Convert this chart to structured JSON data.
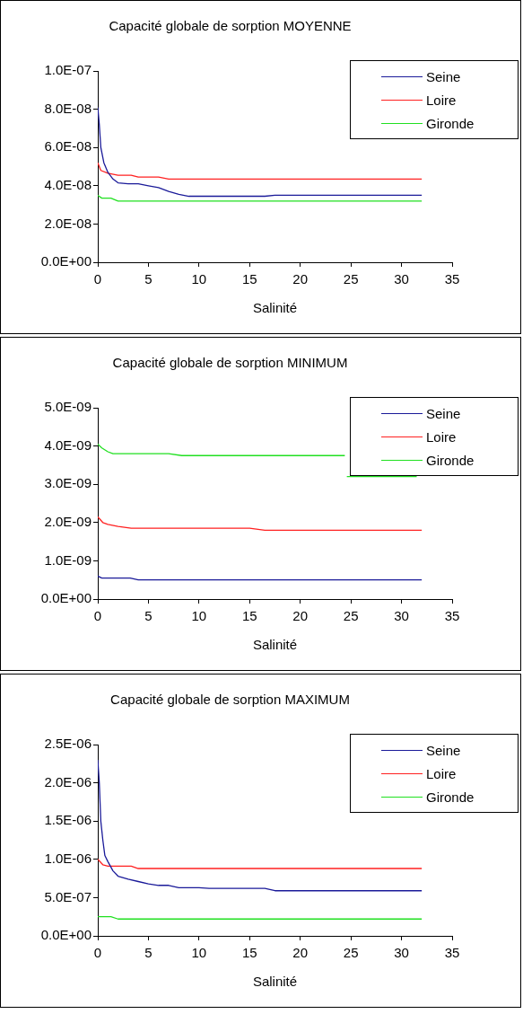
{
  "chart_data": [
    {
      "type": "line",
      "title": "Capacité globale de sorption MOYENNE",
      "xlabel": "Salinité",
      "legend": "top right",
      "grid": false,
      "marker": "none",
      "line_style": "solid",
      "xlim": [
        0,
        35
      ],
      "xticks": [
        0,
        5,
        10,
        15,
        20,
        25,
        30,
        35
      ],
      "ylim": [
        0,
        1e-07
      ],
      "yticks": [
        {
          "value": 0,
          "label": "0.0E+00"
        },
        {
          "value": 2e-08,
          "label": "2.0E-08"
        },
        {
          "value": 4e-08,
          "label": "4.0E-08"
        },
        {
          "value": 6e-08,
          "label": "6.0E-08"
        },
        {
          "value": 8e-08,
          "label": "8.0E-08"
        },
        {
          "value": 1e-07,
          "label": "1.0E-07"
        }
      ],
      "series": [
        {
          "name": "Seine",
          "color": "#1a1a99",
          "x": [
            0,
            0.15,
            0.3,
            0.6,
            1,
            1.5,
            2,
            3,
            4,
            5,
            6,
            7,
            8,
            9,
            16.5,
            17.5,
            32
          ],
          "values": [
            8.1e-08,
            7.2e-08,
            6e-08,
            5.2e-08,
            4.7e-08,
            4.35e-08,
            4.15e-08,
            4.1e-08,
            4.1e-08,
            4e-08,
            3.9e-08,
            3.7e-08,
            3.55e-08,
            3.45e-08,
            3.45e-08,
            3.5e-08,
            3.5e-08
          ]
        },
        {
          "name": "Loire",
          "color": "#ff2020",
          "x": [
            0,
            0.3,
            1,
            2,
            3.3,
            4,
            6,
            7,
            32
          ],
          "values": [
            5.2e-08,
            4.8e-08,
            4.65e-08,
            4.55e-08,
            4.55e-08,
            4.45e-08,
            4.45e-08,
            4.35e-08,
            4.35e-08
          ]
        },
        {
          "name": "Gironde",
          "color": "#20e020",
          "x": [
            0,
            0.4,
            1.3,
            2,
            32
          ],
          "values": [
            3.5e-08,
            3.35e-08,
            3.35e-08,
            3.2e-08,
            3.2e-08
          ]
        }
      ]
    },
    {
      "type": "line",
      "title": "Capacité globale de sorption MINIMUM",
      "xlabel": "Salinité",
      "legend": "top right",
      "grid": false,
      "marker": "none",
      "line_style": "solid",
      "xlim": [
        0,
        35
      ],
      "xticks": [
        0,
        5,
        10,
        15,
        20,
        25,
        30,
        35
      ],
      "ylim": [
        0,
        5e-09
      ],
      "yticks": [
        {
          "value": 0,
          "label": "0.0E+00"
        },
        {
          "value": 1e-09,
          "label": "1.0E-09"
        },
        {
          "value": 2e-09,
          "label": "2.0E-09"
        },
        {
          "value": 3e-09,
          "label": "3.0E-09"
        },
        {
          "value": 4e-09,
          "label": "4.0E-09"
        },
        {
          "value": 5e-09,
          "label": "5.0E-09"
        }
      ],
      "series": [
        {
          "name": "Seine",
          "color": "#1a1a99",
          "x": [
            0,
            0.4,
            3.2,
            4,
            32
          ],
          "values": [
            6e-10,
            5.5e-10,
            5.5e-10,
            5e-10,
            5e-10
          ]
        },
        {
          "name": "Loire",
          "color": "#ff2020",
          "x": [
            0,
            0.5,
            1,
            2,
            3.3,
            15,
            16.5,
            32
          ],
          "values": [
            2.15e-09,
            2e-09,
            1.95e-09,
            1.9e-09,
            1.85e-09,
            1.85e-09,
            1.8e-09,
            1.8e-09
          ]
        },
        {
          "name": "Gironde",
          "color": "#20e020",
          "x": [
            0,
            0.4,
            1,
            1.5,
            7,
            8.3,
            24.4,
            24.5,
            24.6,
            31.5
          ],
          "values": [
            4.05e-09,
            3.95e-09,
            3.85e-09,
            3.8e-09,
            3.8e-09,
            3.75e-09,
            3.75e-09,
            null,
            3.2e-09,
            3.2e-09
          ]
        }
      ]
    },
    {
      "type": "line",
      "title": "Capacité globale de sorption MAXIMUM",
      "xlabel": "Salinité",
      "legend": "top right",
      "grid": false,
      "marker": "none",
      "line_style": "solid",
      "xlim": [
        0,
        35
      ],
      "xticks": [
        0,
        5,
        10,
        15,
        20,
        25,
        30,
        35
      ],
      "ylim": [
        0,
        2.5e-06
      ],
      "yticks": [
        {
          "value": 0,
          "label": "0.0E+00"
        },
        {
          "value": 5e-07,
          "label": "5.0E-07"
        },
        {
          "value": 1e-06,
          "label": "1.0E-06"
        },
        {
          "value": 1.5e-06,
          "label": "1.5E-06"
        },
        {
          "value": 2e-06,
          "label": "2.0E-06"
        },
        {
          "value": 2.5e-06,
          "label": "2.5E-06"
        }
      ],
      "series": [
        {
          "name": "Seine",
          "color": "#1a1a99",
          "x": [
            0,
            0.15,
            0.3,
            0.5,
            0.7,
            1,
            1.5,
            2,
            3,
            4,
            5,
            6,
            7,
            8,
            10,
            11,
            16.5,
            17.5,
            32
          ],
          "values": [
            2.3e-06,
            2e-06,
            1.5e-06,
            1.25e-06,
            1.05e-06,
            9.7e-07,
            8.5e-07,
            7.8e-07,
            7.4e-07,
            7.1e-07,
            6.8e-07,
            6.6e-07,
            6.6e-07,
            6.3e-07,
            6.3e-07,
            6.2e-07,
            6.2e-07,
            5.9e-07,
            5.9e-07
          ]
        },
        {
          "name": "Loire",
          "color": "#ff2020",
          "x": [
            0,
            0.5,
            1,
            3.3,
            4,
            32
          ],
          "values": [
            1e-06,
            9.3e-07,
            9.1e-07,
            9.1e-07,
            8.8e-07,
            8.8e-07
          ]
        },
        {
          "name": "Gironde",
          "color": "#20e020",
          "x": [
            0,
            1.3,
            2,
            32
          ],
          "values": [
            2.5e-07,
            2.5e-07,
            2.2e-07,
            2.2e-07
          ]
        }
      ]
    }
  ]
}
